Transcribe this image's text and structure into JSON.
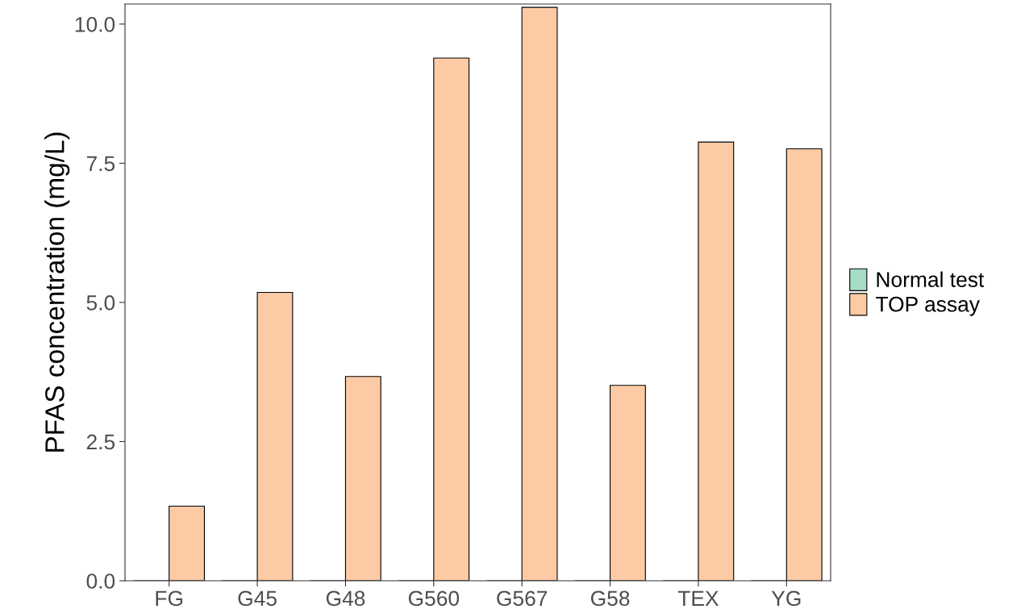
{
  "chart_data": {
    "type": "bar",
    "ylabel": "PFAS concentration (mg/L)",
    "categories": [
      "FG",
      "G45",
      "G48",
      "G560",
      "G567",
      "G58",
      "TEX",
      "YG"
    ],
    "series": [
      {
        "name": "Normal test",
        "color": "#a6dcc6",
        "values": [
          0,
          0,
          0,
          0,
          0,
          0,
          0,
          0
        ]
      },
      {
        "name": "TOP assay",
        "color": "#fccba6",
        "values": [
          1.34,
          5.18,
          3.67,
          9.39,
          10.3,
          3.51,
          7.88,
          7.76
        ]
      }
    ],
    "ylim": [
      0,
      10.36
    ],
    "yticks": [
      {
        "value": 0,
        "label": "0.0"
      },
      {
        "value": 2.5,
        "label": "2.5"
      },
      {
        "value": 5,
        "label": "5.0"
      },
      {
        "value": 7.5,
        "label": "7.5"
      },
      {
        "value": 10,
        "label": "10.0"
      }
    ],
    "grid": false,
    "legend": "right"
  }
}
